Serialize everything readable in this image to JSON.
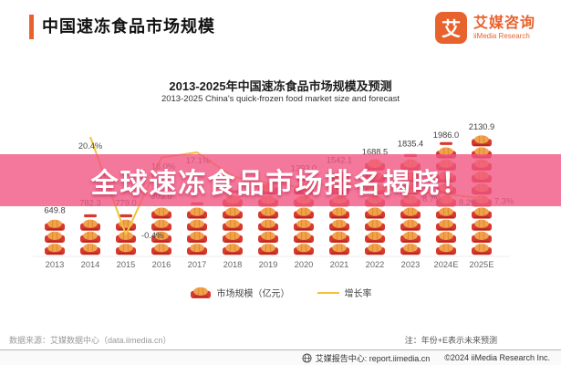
{
  "header": {
    "title": "中国速冻食品市场规模",
    "brand_glyph": "艾",
    "brand_name": "艾媒咨询",
    "brand_sub": "iiMedia Research"
  },
  "chart": {
    "title": "2013-2025年中国速冻食品市场规模及预测",
    "subtitle": "2013-2025 China's quick-frozen food market size and forecast",
    "legend": [
      {
        "label": "市场规模（亿元）"
      },
      {
        "label": "增长率"
      }
    ]
  },
  "chart_data": {
    "type": "bar",
    "subtype": "pictograph-bars-with-growth-line",
    "title": "2013-2025年中国速冻食品市场规模及预测",
    "xlabel": "",
    "ylabel": "",
    "grid": false,
    "y_axis_visible": false,
    "legend_position": "bottom",
    "categories": [
      "2013",
      "2014",
      "2015",
      "2016",
      "2017",
      "2018",
      "2019",
      "2020",
      "2021",
      "2022",
      "2023",
      "2024E",
      "2025E"
    ],
    "series": [
      {
        "name": "市场规模（亿元）",
        "type": "pictograph-bar",
        "values": [
          649.8,
          782.3,
          779.0,
          903.5,
          null,
          null,
          null,
          1393.0,
          1542.1,
          1688.5,
          1835.4,
          1986.0,
          2130.9
        ],
        "labels": [
          "649.8",
          "782.3",
          "779.0",
          "903.5",
          "",
          "",
          "",
          "1393.0",
          "1542.1",
          "1688.5",
          "1835.4",
          "1986.0",
          "2130.9"
        ]
      },
      {
        "name": "增长率",
        "type": "line",
        "values_pct": [
          null,
          20.4,
          -0.4,
          16.0,
          17.1,
          null,
          null,
          null,
          null,
          null,
          8.7,
          8.2,
          7.3
        ],
        "labels": [
          "",
          "20.4%",
          "-0.4%",
          "16.0%",
          "17.1%",
          "",
          "",
          "",
          "",
          "",
          "8.7%",
          "8.2%",
          "7.3%"
        ]
      }
    ]
  },
  "banner": {
    "text": "全球速冻食品市场排名揭晓！"
  },
  "source": "数据来源：艾媒数据中心（data.iimedia.cn）",
  "note": "注：年份+E表示未来预测",
  "footer": {
    "report_center": "艾媒报告中心: report.iimedia.cn",
    "copyright": "©2024 iiMedia Research Inc."
  },
  "colors": {
    "accent": "#E8622D",
    "growth_line": "#F1C33C",
    "icon_base": "#D6392E",
    "icon_bun": "#F2A24B",
    "icon_crease": "#D8822A",
    "banner_overlay": "#F05682"
  }
}
